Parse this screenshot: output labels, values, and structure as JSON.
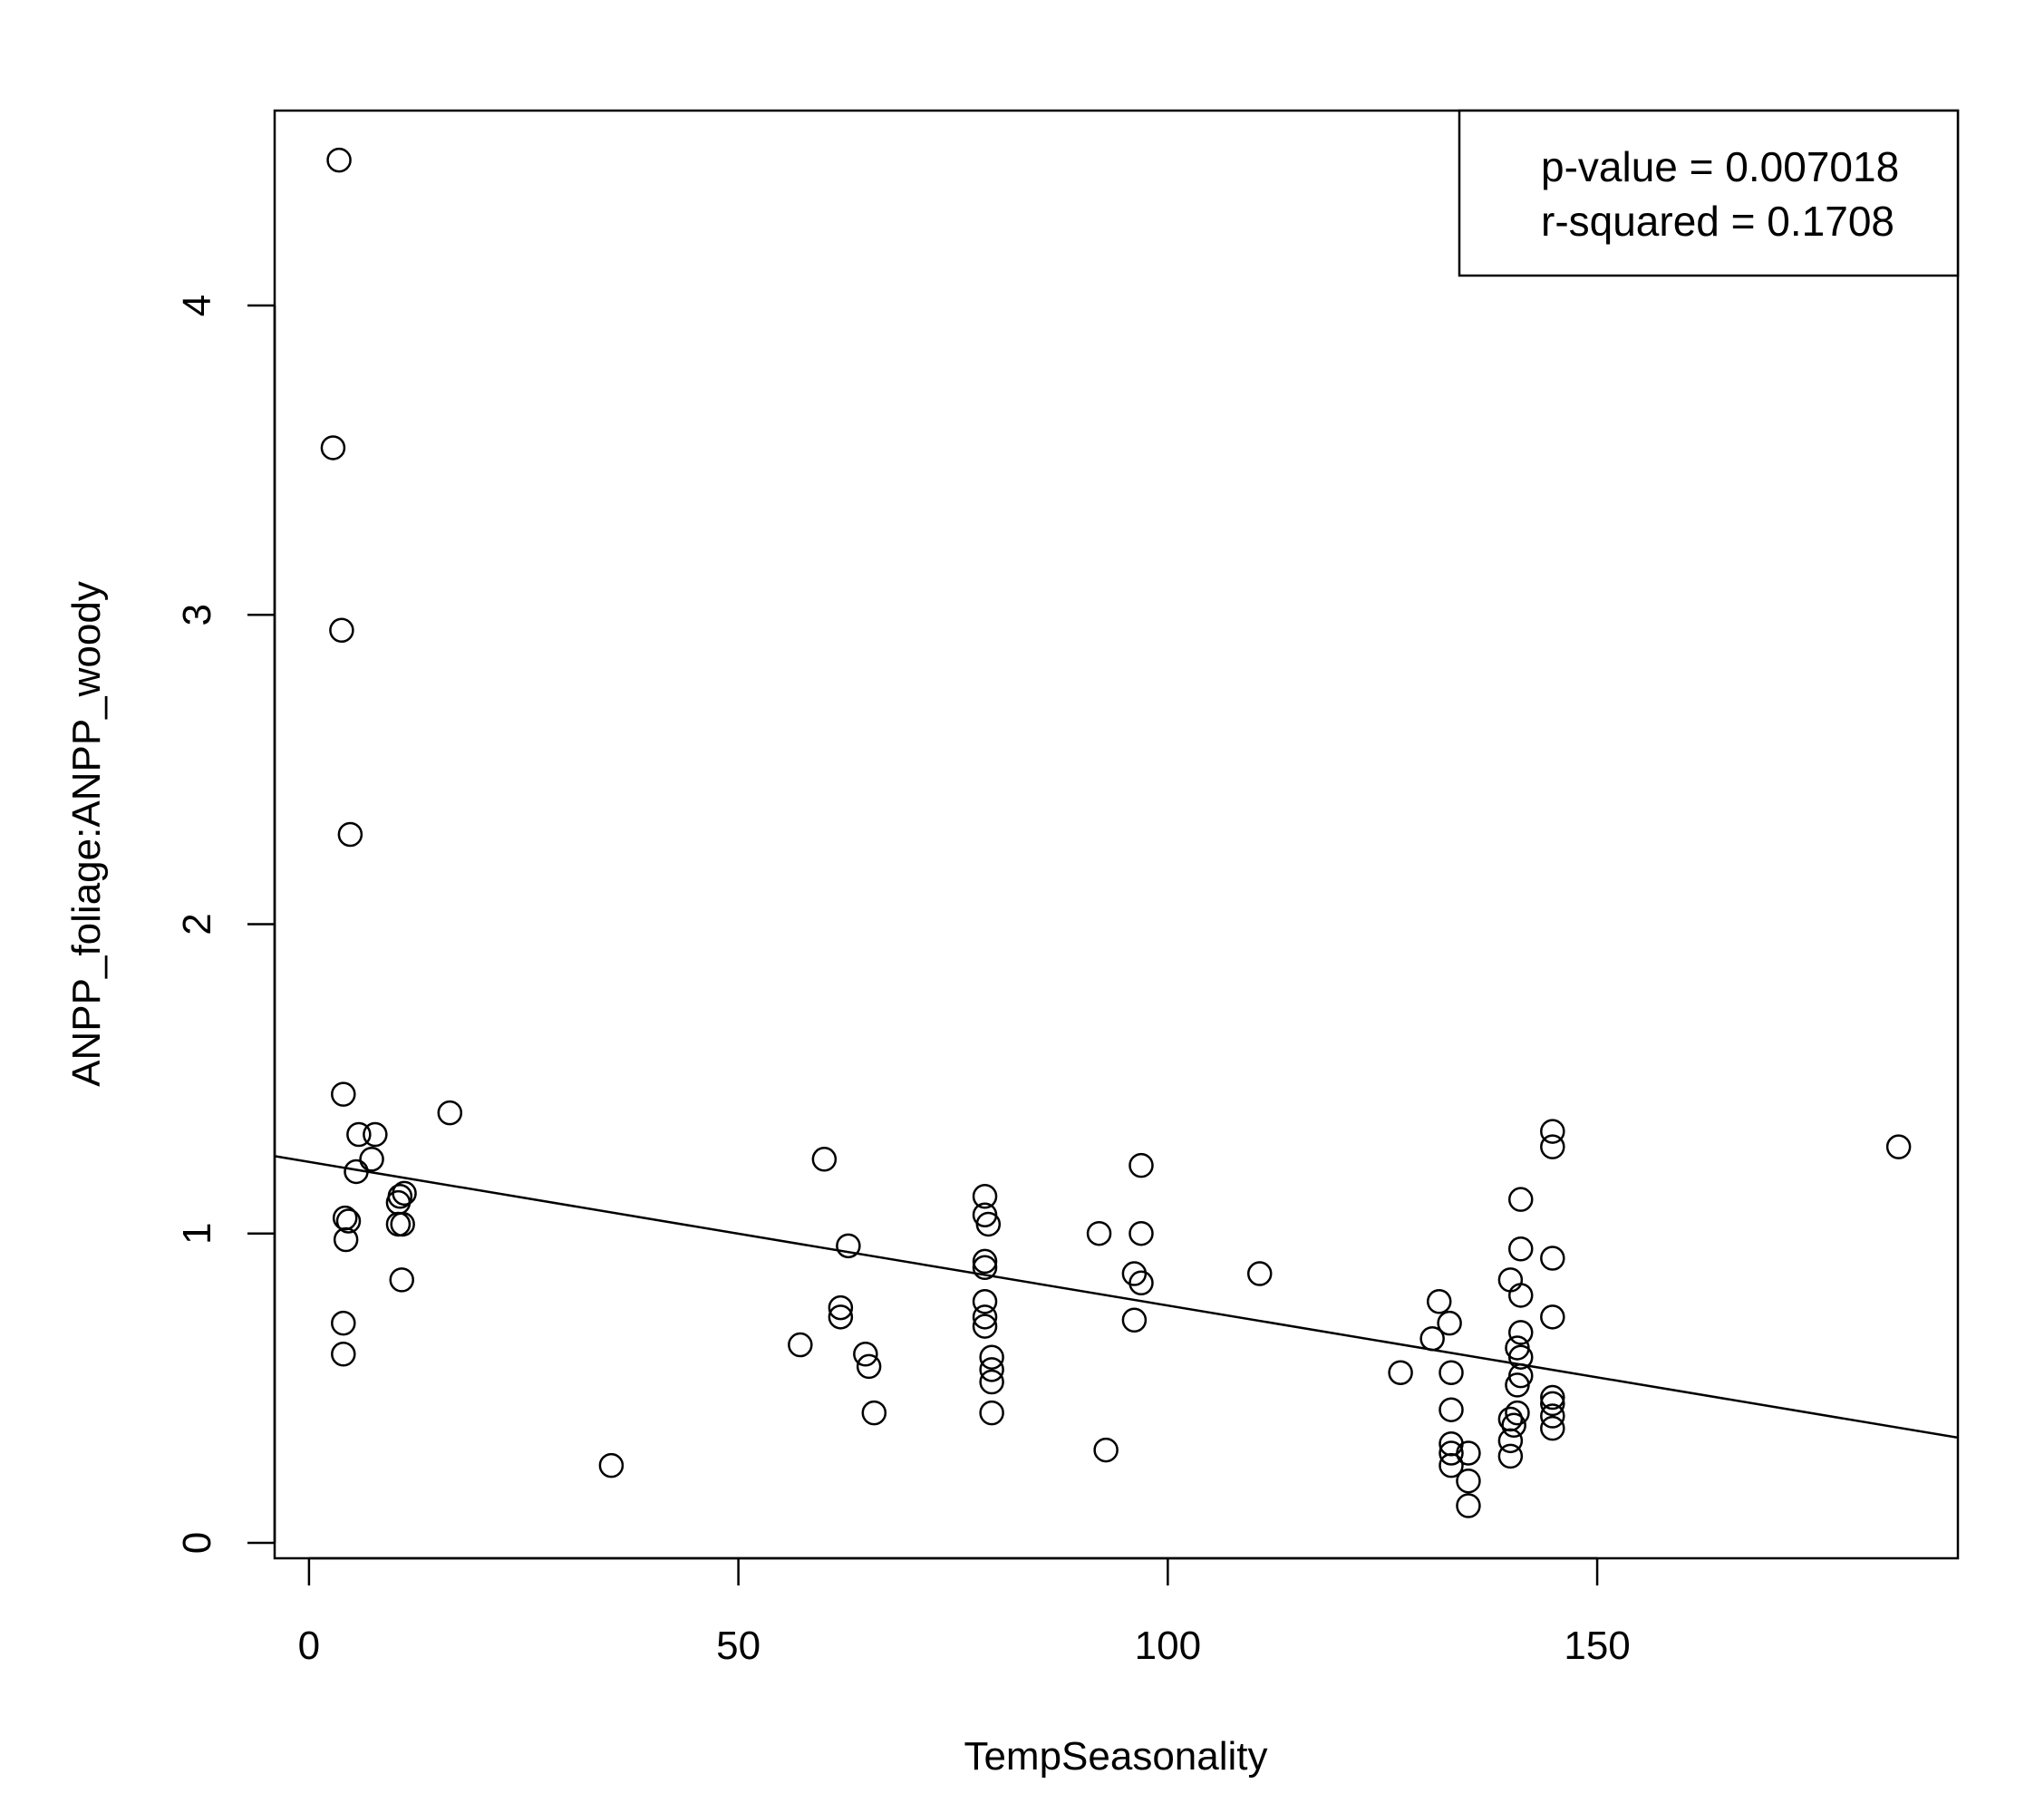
{
  "chart_data": {
    "type": "scatter",
    "xlabel": "TempSeasonality",
    "ylabel": "ANPP_foliage:ANPP_woody",
    "xlim": [
      -4,
      192
    ],
    "ylim": [
      -0.05,
      4.63
    ],
    "xticks": [
      0,
      50,
      100,
      150
    ],
    "yticks": [
      0,
      1,
      2,
      3,
      4
    ],
    "grid": false,
    "legend": {
      "placement": "top-right",
      "lines": [
        "p-value = 0.007018",
        "r-squared = 0.1708"
      ]
    },
    "regression_line": {
      "x": [
        -4,
        192
      ],
      "y": [
        1.25,
        0.34
      ]
    },
    "points": [
      {
        "x": 3.5,
        "y": 4.47
      },
      {
        "x": 2.8,
        "y": 3.54
      },
      {
        "x": 3.8,
        "y": 2.95
      },
      {
        "x": 4.8,
        "y": 2.29
      },
      {
        "x": 4.0,
        "y": 1.45
      },
      {
        "x": 5.8,
        "y": 1.32
      },
      {
        "x": 7.7,
        "y": 1.32
      },
      {
        "x": 7.3,
        "y": 1.24
      },
      {
        "x": 5.5,
        "y": 1.2
      },
      {
        "x": 4.2,
        "y": 1.05
      },
      {
        "x": 4.6,
        "y": 1.04
      },
      {
        "x": 4.3,
        "y": 0.98
      },
      {
        "x": 4.0,
        "y": 0.71
      },
      {
        "x": 4.0,
        "y": 0.61
      },
      {
        "x": 11.1,
        "y": 1.13
      },
      {
        "x": 10.6,
        "y": 1.12
      },
      {
        "x": 10.4,
        "y": 1.1
      },
      {
        "x": 10.4,
        "y": 1.03
      },
      {
        "x": 10.9,
        "y": 1.03
      },
      {
        "x": 10.8,
        "y": 0.85
      },
      {
        "x": 16.4,
        "y": 1.39
      },
      {
        "x": 35.2,
        "y": 0.25
      },
      {
        "x": 57.2,
        "y": 0.64
      },
      {
        "x": 60.0,
        "y": 1.24
      },
      {
        "x": 61.9,
        "y": 0.76
      },
      {
        "x": 61.9,
        "y": 0.73
      },
      {
        "x": 62.8,
        "y": 0.96
      },
      {
        "x": 64.8,
        "y": 0.61
      },
      {
        "x": 65.2,
        "y": 0.57
      },
      {
        "x": 65.8,
        "y": 0.42
      },
      {
        "x": 78.7,
        "y": 1.12
      },
      {
        "x": 78.7,
        "y": 1.06
      },
      {
        "x": 79.1,
        "y": 1.03
      },
      {
        "x": 78.7,
        "y": 0.91
      },
      {
        "x": 78.7,
        "y": 0.89
      },
      {
        "x": 78.7,
        "y": 0.78
      },
      {
        "x": 78.7,
        "y": 0.73
      },
      {
        "x": 78.7,
        "y": 0.7
      },
      {
        "x": 79.5,
        "y": 0.6
      },
      {
        "x": 79.5,
        "y": 0.56
      },
      {
        "x": 79.5,
        "y": 0.52
      },
      {
        "x": 79.5,
        "y": 0.42
      },
      {
        "x": 92.0,
        "y": 1.0
      },
      {
        "x": 92.8,
        "y": 0.3
      },
      {
        "x": 96.1,
        "y": 0.87
      },
      {
        "x": 96.9,
        "y": 0.84
      },
      {
        "x": 96.1,
        "y": 0.72
      },
      {
        "x": 96.9,
        "y": 1.22
      },
      {
        "x": 96.9,
        "y": 1.0
      },
      {
        "x": 110.7,
        "y": 0.87
      },
      {
        "x": 127.1,
        "y": 0.55
      },
      {
        "x": 130.8,
        "y": 0.66
      },
      {
        "x": 131.6,
        "y": 0.78
      },
      {
        "x": 132.8,
        "y": 0.71
      },
      {
        "x": 133.0,
        "y": 0.55
      },
      {
        "x": 133.0,
        "y": 0.43
      },
      {
        "x": 133.0,
        "y": 0.32
      },
      {
        "x": 133.0,
        "y": 0.29
      },
      {
        "x": 133.0,
        "y": 0.25
      },
      {
        "x": 135.0,
        "y": 0.29
      },
      {
        "x": 135.0,
        "y": 0.2
      },
      {
        "x": 135.0,
        "y": 0.12
      },
      {
        "x": 139.9,
        "y": 0.85
      },
      {
        "x": 140.7,
        "y": 0.63
      },
      {
        "x": 139.9,
        "y": 0.4
      },
      {
        "x": 140.3,
        "y": 0.38
      },
      {
        "x": 139.9,
        "y": 0.33
      },
      {
        "x": 139.9,
        "y": 0.28
      },
      {
        "x": 141.1,
        "y": 1.11
      },
      {
        "x": 141.1,
        "y": 0.95
      },
      {
        "x": 141.1,
        "y": 0.8
      },
      {
        "x": 141.1,
        "y": 0.68
      },
      {
        "x": 141.1,
        "y": 0.6
      },
      {
        "x": 141.1,
        "y": 0.54
      },
      {
        "x": 140.7,
        "y": 0.51
      },
      {
        "x": 140.7,
        "y": 0.42
      },
      {
        "x": 144.8,
        "y": 1.33
      },
      {
        "x": 144.8,
        "y": 1.28
      },
      {
        "x": 144.8,
        "y": 0.92
      },
      {
        "x": 144.8,
        "y": 0.73
      },
      {
        "x": 144.8,
        "y": 0.47
      },
      {
        "x": 144.8,
        "y": 0.45
      },
      {
        "x": 144.8,
        "y": 0.41
      },
      {
        "x": 144.8,
        "y": 0.37
      },
      {
        "x": 185.1,
        "y": 1.28
      }
    ]
  }
}
